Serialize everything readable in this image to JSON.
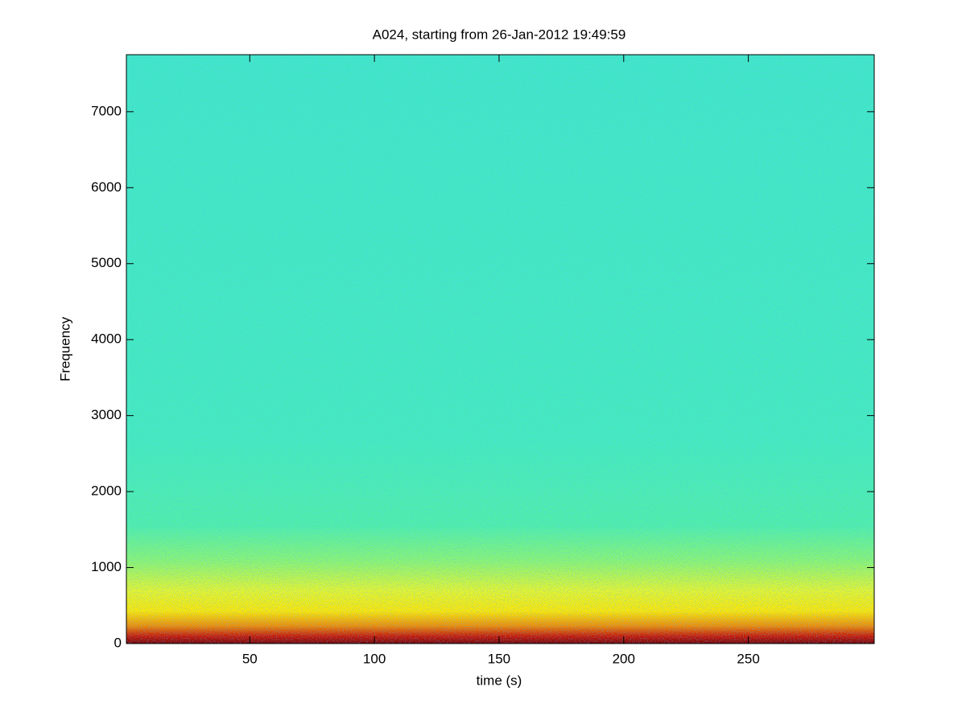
{
  "chart_data": {
    "type": "spectrogram",
    "title": "A024, starting from 26-Jan-2012 19:49:59",
    "x_label": "time (s)",
    "y_label": "Frequency",
    "xlim": [
      0.5,
      300.5
    ],
    "ylim": [
      0,
      7750
    ],
    "xticks": [
      50,
      100,
      150,
      200,
      250
    ],
    "yticks": [
      0,
      1000,
      2000,
      3000,
      4000,
      5000,
      6000,
      7000
    ],
    "colormap": "jet"
  }
}
